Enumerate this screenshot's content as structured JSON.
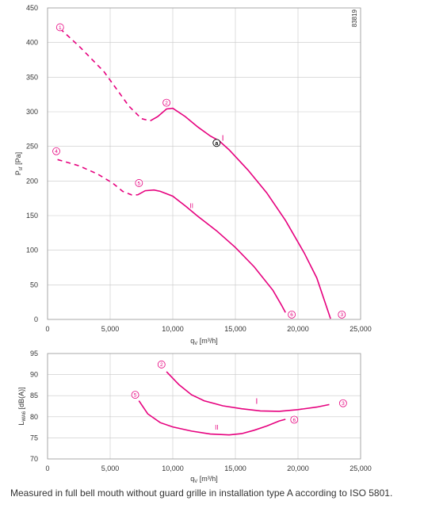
{
  "chart_data": [
    {
      "type": "line",
      "xlabel_main": "q",
      "xlabel_sub": "V",
      "xlabel_unit": " [m³/h]",
      "ylabel_main": "P",
      "ylabel_sub": "sf",
      "ylabel_unit": " [Pa]",
      "xlim": [
        0,
        25000
      ],
      "ylim": [
        0,
        450
      ],
      "xticks": [
        0,
        5000,
        10000,
        15000,
        20000,
        25000
      ],
      "xtick_labels": [
        "0",
        "5,000",
        "10,000",
        "15,000",
        "20,000",
        "25,000"
      ],
      "yticks": [
        0,
        50,
        100,
        150,
        200,
        250,
        300,
        350,
        400,
        450
      ],
      "ytick_labels": [
        "0",
        "50",
        "100",
        "150",
        "200",
        "250",
        "300",
        "350",
        "400",
        "450"
      ],
      "grid": true,
      "code": "83819",
      "series": [
        {
          "name": "I",
          "style": "dashed",
          "x": [
            1000,
            2500,
            4500,
            5700,
            6500,
            7500,
            8200
          ],
          "y": [
            420,
            395,
            358,
            328,
            308,
            290,
            287
          ]
        },
        {
          "name": "I",
          "style": "solid",
          "x": [
            8200,
            8800,
            9500,
            10000,
            11000,
            12000,
            13000,
            13700,
            14500,
            16000,
            17500,
            19000,
            20500,
            21500,
            22600
          ],
          "y": [
            287,
            293,
            304,
            305,
            293,
            278,
            265,
            258,
            245,
            216,
            183,
            143,
            96,
            60,
            1
          ]
        },
        {
          "name": "II",
          "style": "dashed",
          "x": [
            800,
            2500,
            4000,
            5200,
            6000,
            6700,
            7200
          ],
          "y": [
            231,
            222,
            210,
            197,
            185,
            180,
            180
          ]
        },
        {
          "name": "II",
          "style": "solid",
          "x": [
            7200,
            7800,
            8500,
            9000,
            10000,
            11000,
            12000,
            13500,
            15000,
            16500,
            18000,
            18700,
            19000
          ],
          "y": [
            180,
            186,
            187,
            185,
            178,
            164,
            149,
            128,
            104,
            76,
            42,
            20,
            10
          ]
        }
      ],
      "markers": [
        {
          "label": "1",
          "x": 1000,
          "y": 422
        },
        {
          "label": "2",
          "x": 9500,
          "y": 313
        },
        {
          "label": "3",
          "x": 23500,
          "y": 7
        },
        {
          "label": "4",
          "x": 700,
          "y": 243
        },
        {
          "label": "5",
          "x": 7300,
          "y": 197
        },
        {
          "label": "6",
          "x": 19500,
          "y": 7
        }
      ],
      "operating_point": {
        "label": "a",
        "x": 13500,
        "y": 255
      },
      "curve_labels": [
        {
          "text": "I",
          "x": 14000,
          "y": 258
        },
        {
          "text": "II",
          "x": 11500,
          "y": 161
        }
      ]
    },
    {
      "type": "line",
      "xlabel_main": "q",
      "xlabel_sub": "V",
      "xlabel_unit": " [m³/h]",
      "ylabel_main": "L",
      "ylabel_sub": "WA6",
      "ylabel_unit": " [dB(A)]",
      "xlim": [
        0,
        25000
      ],
      "ylim": [
        70,
        95
      ],
      "xticks": [
        0,
        5000,
        10000,
        15000,
        20000,
        25000
      ],
      "xtick_labels": [
        "0",
        "5,000",
        "10,000",
        "15,000",
        "20,000",
        "25,000"
      ],
      "yticks": [
        70,
        75,
        80,
        85,
        90,
        95
      ],
      "ytick_labels": [
        "70",
        "75",
        "80",
        "85",
        "90",
        "95"
      ],
      "grid": true,
      "series": [
        {
          "name": "I",
          "style": "solid",
          "x": [
            9500,
            10500,
            11500,
            12500,
            14000,
            15500,
            17000,
            18500,
            20000,
            21500,
            22500
          ],
          "y": [
            90.7,
            87.6,
            85.2,
            83.8,
            82.6,
            81.9,
            81.4,
            81.3,
            81.7,
            82.3,
            82.9
          ]
        },
        {
          "name": "II",
          "style": "solid",
          "x": [
            7300,
            8000,
            9000,
            10000,
            11500,
            13000,
            14500,
            15500,
            16500,
            17500,
            18500,
            19000
          ],
          "y": [
            83.8,
            80.7,
            78.6,
            77.6,
            76.6,
            75.9,
            75.7,
            76.0,
            76.8,
            77.8,
            79.0,
            79.4
          ]
        }
      ],
      "markers": [
        {
          "label": "2",
          "x": 9100,
          "y": 92.4
        },
        {
          "label": "5",
          "x": 7000,
          "y": 85.2
        },
        {
          "label": "3",
          "x": 23600,
          "y": 83.2
        },
        {
          "label": "6",
          "x": 19700,
          "y": 79.3
        }
      ],
      "curve_labels": [
        {
          "text": "I",
          "x": 16700,
          "y": 83.1
        },
        {
          "text": "II",
          "x": 13500,
          "y": 77.0
        }
      ]
    }
  ],
  "caption": "Measured in full bell mouth without guard grille in installation type A according to ISO 5801."
}
